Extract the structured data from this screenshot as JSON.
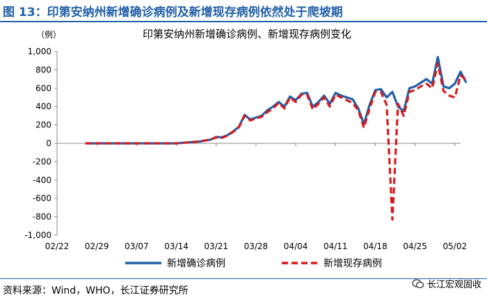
{
  "figure_title": "图 13：印第安纳州新增确诊病例及新增现存病例依然处于爬坡期",
  "source": "资料来源：Wind，WHO，长江证券研究所",
  "watermark": "长江宏观固收",
  "chart_data": {
    "type": "line",
    "title": "印第安纳州新增确诊病例、新增现存病例变化",
    "ylabel": "（例）",
    "ylim": [
      -1000,
      1000
    ],
    "yticks": [
      "1,000",
      "800",
      "600",
      "400",
      "200",
      "0",
      "-200",
      "-400",
      "-600",
      "-800",
      "-1,000"
    ],
    "ytick_values": [
      1000,
      800,
      600,
      400,
      200,
      0,
      -200,
      -400,
      -600,
      -800,
      -1000
    ],
    "xlim": [
      "02/22",
      "05/03"
    ],
    "xticks": [
      "02/22",
      "02/29",
      "03/07",
      "03/14",
      "03/21",
      "03/28",
      "04/04",
      "04/11",
      "04/18",
      "04/25",
      "05/02"
    ],
    "legend": "bottom",
    "colors": {
      "confirmed": "#1f5fa8",
      "active": "#d7191c"
    },
    "series": [
      {
        "name": "新增确诊病例",
        "style": "solid",
        "points": [
          [
            "02/27",
            0
          ],
          [
            "02/28",
            0
          ],
          [
            "02/29",
            0
          ],
          [
            "03/01",
            0
          ],
          [
            "03/02",
            0
          ],
          [
            "03/03",
            0
          ],
          [
            "03/04",
            0
          ],
          [
            "03/05",
            0
          ],
          [
            "03/06",
            0
          ],
          [
            "03/07",
            0
          ],
          [
            "03/08",
            0
          ],
          [
            "03/09",
            0
          ],
          [
            "03/10",
            0
          ],
          [
            "03/11",
            0
          ],
          [
            "03/12",
            0
          ],
          [
            "03/13",
            0
          ],
          [
            "03/14",
            0
          ],
          [
            "03/15",
            5
          ],
          [
            "03/16",
            10
          ],
          [
            "03/17",
            15
          ],
          [
            "03/18",
            20
          ],
          [
            "03/19",
            30
          ],
          [
            "03/20",
            40
          ],
          [
            "03/21",
            70
          ],
          [
            "03/22",
            65
          ],
          [
            "03/23",
            90
          ],
          [
            "03/24",
            130
          ],
          [
            "03/25",
            180
          ],
          [
            "03/26",
            310
          ],
          [
            "03/27",
            260
          ],
          [
            "03/28",
            280
          ],
          [
            "03/29",
            300
          ],
          [
            "03/30",
            360
          ],
          [
            "03/31",
            400
          ],
          [
            "04/01",
            450
          ],
          [
            "04/02",
            400
          ],
          [
            "04/03",
            510
          ],
          [
            "04/04",
            470
          ],
          [
            "04/05",
            540
          ],
          [
            "04/06",
            550
          ],
          [
            "04/07",
            400
          ],
          [
            "04/08",
            450
          ],
          [
            "04/09",
            520
          ],
          [
            "04/10",
            430
          ],
          [
            "04/11",
            550
          ],
          [
            "04/12",
            520
          ],
          [
            "04/13",
            500
          ],
          [
            "04/14",
            480
          ],
          [
            "04/15",
            380
          ],
          [
            "04/16",
            210
          ],
          [
            "04/17",
            420
          ],
          [
            "04/18",
            580
          ],
          [
            "04/19",
            590
          ],
          [
            "04/20",
            500
          ],
          [
            "04/21",
            560
          ],
          [
            "04/22",
            400
          ],
          [
            "04/23",
            350
          ],
          [
            "04/24",
            600
          ],
          [
            "04/25",
            620
          ],
          [
            "04/26",
            660
          ],
          [
            "04/27",
            700
          ],
          [
            "04/28",
            650
          ],
          [
            "04/29",
            940
          ],
          [
            "04/30",
            620
          ],
          [
            "05/01",
            600
          ],
          [
            "05/02",
            650
          ],
          [
            "05/03",
            780
          ],
          [
            "05/04",
            660
          ]
        ]
      },
      {
        "name": "新增现存病例",
        "style": "dashed",
        "points": [
          [
            "02/27",
            0
          ],
          [
            "02/28",
            0
          ],
          [
            "02/29",
            0
          ],
          [
            "03/01",
            0
          ],
          [
            "03/02",
            0
          ],
          [
            "03/03",
            0
          ],
          [
            "03/04",
            0
          ],
          [
            "03/05",
            0
          ],
          [
            "03/06",
            0
          ],
          [
            "03/07",
            0
          ],
          [
            "03/08",
            0
          ],
          [
            "03/09",
            0
          ],
          [
            "03/10",
            0
          ],
          [
            "03/11",
            0
          ],
          [
            "03/12",
            0
          ],
          [
            "03/13",
            0
          ],
          [
            "03/14",
            0
          ],
          [
            "03/15",
            5
          ],
          [
            "03/16",
            10
          ],
          [
            "03/17",
            15
          ],
          [
            "03/18",
            20
          ],
          [
            "03/19",
            30
          ],
          [
            "03/20",
            40
          ],
          [
            "03/21",
            65
          ],
          [
            "03/22",
            60
          ],
          [
            "03/23",
            85
          ],
          [
            "03/24",
            125
          ],
          [
            "03/25",
            175
          ],
          [
            "03/26",
            300
          ],
          [
            "03/27",
            250
          ],
          [
            "03/28",
            270
          ],
          [
            "03/29",
            290
          ],
          [
            "03/30",
            340
          ],
          [
            "03/31",
            380
          ],
          [
            "04/01",
            440
          ],
          [
            "04/02",
            380
          ],
          [
            "04/03",
            500
          ],
          [
            "04/04",
            450
          ],
          [
            "04/05",
            530
          ],
          [
            "04/06",
            530
          ],
          [
            "04/07",
            370
          ],
          [
            "04/08",
            430
          ],
          [
            "04/09",
            500
          ],
          [
            "04/10",
            400
          ],
          [
            "04/11",
            530
          ],
          [
            "04/12",
            500
          ],
          [
            "04/13",
            470
          ],
          [
            "04/14",
            440
          ],
          [
            "04/15",
            360
          ],
          [
            "04/16",
            170
          ],
          [
            "04/17",
            380
          ],
          [
            "04/18",
            560
          ],
          [
            "04/19",
            560
          ],
          [
            "04/20",
            420
          ],
          [
            "04/21",
            -830
          ],
          [
            "04/22",
            430
          ],
          [
            "04/23",
            300
          ],
          [
            "04/24",
            560
          ],
          [
            "04/25",
            580
          ],
          [
            "04/26",
            620
          ],
          [
            "04/27",
            650
          ],
          [
            "04/28",
            600
          ],
          [
            "04/29",
            870
          ],
          [
            "04/30",
            570
          ],
          [
            "05/01",
            520
          ],
          [
            "05/02",
            500
          ],
          [
            "05/03",
            740
          ],
          [
            "05/04",
            690
          ]
        ]
      }
    ]
  }
}
